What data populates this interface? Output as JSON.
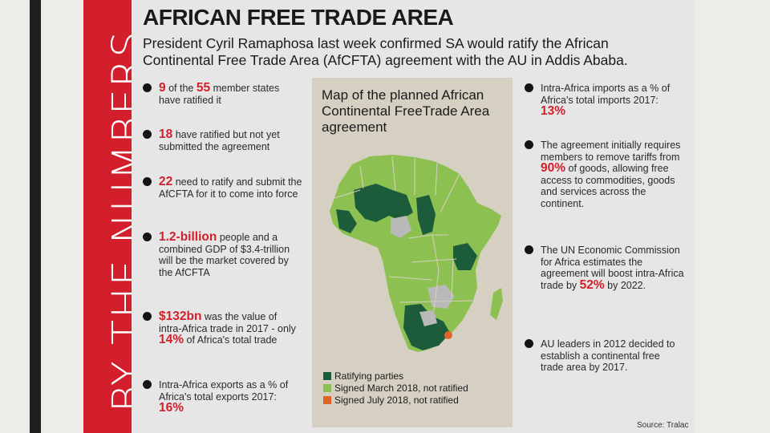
{
  "vertical_title": "BY THE NUMBERS",
  "title": "AFRICAN FREE TRADE AREA",
  "subtitle": "President Cyril Ramaphosa last week confirmed SA would ratify the African Continental Free Trade Area (AfCFTA) agreement with the AU in Addis Ababa.",
  "left_stats": [
    {
      "a": "9",
      "b": " of the ",
      "c": "55",
      "d": " member states have ratified it"
    },
    {
      "a": "18",
      "b": " have ratified but not yet submitted the agreement"
    },
    {
      "a": "22",
      "b": " need to ratify and submit the AfCFTA for it to come into force"
    },
    {
      "a": "1.2-billion",
      "b": " people and a combined GDP of $3.4-trillion will be the market covered by the AfCFTA"
    },
    {
      "a": "$132bn",
      "b": " was the value of intra-Africa trade in 2017 - only ",
      "c": "14%",
      "d": " of Africa's total trade"
    },
    {
      "a": "Intra-Africa exports as a % of Africa's total exports 2017:",
      "b": "16%"
    }
  ],
  "right_stats": [
    {
      "a": "Intra-Africa imports as a % of Africa's total imports 2017:",
      "b": "13%"
    },
    {
      "a": "The agreement initially requires members to remove tariffs from ",
      "b": "90%",
      "c": " of goods, allowing free access to commodities, goods and services across the continent."
    },
    {
      "a": "The UN Economic Commission for Africa estimates the agreement will boost intra-Africa trade by ",
      "b": "52%",
      "c": " by 2022."
    },
    {
      "a": "AU leaders in 2012 decided to establish a continental free trade area by 2017."
    }
  ],
  "map": {
    "title": "Map of the planned African Continental FreeTrade Area agreement",
    "legend": [
      {
        "label": "Ratifying parties",
        "color": "#1d5c3a"
      },
      {
        "label": "Signed March 2018, not ratified",
        "color": "#8cc152"
      },
      {
        "label": "Signed July 2018, not ratified",
        "color": "#e0642a"
      }
    ],
    "colors": {
      "ratified": "#1d5c3a",
      "signed": "#8cc152",
      "july": "#e0642a",
      "none": "#b9b9b9"
    }
  },
  "source": "Source: Tralac"
}
